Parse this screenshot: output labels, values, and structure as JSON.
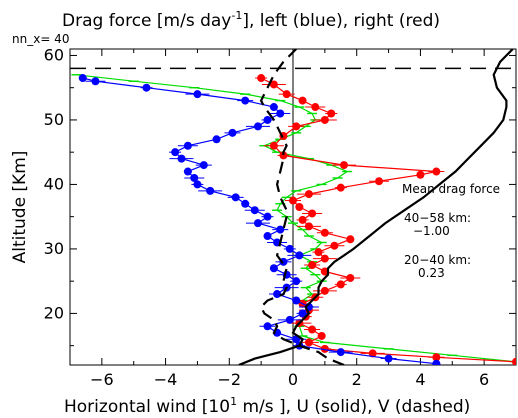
{
  "title_main": "Drag force [m/s day",
  "title_sup": "-1",
  "title_rest": "], left (blue), right (red)",
  "subtitle": "nn_x=  40",
  "chart_data": {
    "type": "line",
    "xlabel_main": "Horizontal wind [10",
    "xlabel_sup": "1",
    "xlabel_rest": " m/s  ], U (solid), V (dashed)",
    "ylabel": "Altitude [Km]",
    "xlim": [
      -7,
      7
    ],
    "ylim": [
      12,
      61
    ],
    "x_ticks": [
      -6,
      -4,
      -2,
      0,
      2,
      4,
      6
    ],
    "x_tick_labels": [
      "−6",
      "−4",
      "−2",
      "0",
      "2",
      "4",
      "6"
    ],
    "y_ticks": [
      20,
      30,
      40,
      50,
      60
    ],
    "y_tick_labels": [
      "20",
      "30",
      "40",
      "50",
      "60"
    ],
    "reference_lines": {
      "vertical_x": 0,
      "horizontal_dashed_y": 58
    },
    "annotations": {
      "header": "Mean drag force",
      "range1": "40−58 km:",
      "value1": "−1.00",
      "range2": "20−40 km:",
      "value2": "0.23"
    },
    "colors": {
      "blue": "#0000ff",
      "red": "#ff0000",
      "green": "#00dd00",
      "black": "#000000"
    },
    "series": [
      {
        "color": "black",
        "style": "solid",
        "points": [
          [
            -1.7,
            12
          ],
          [
            -1.2,
            13
          ],
          [
            -0.4,
            14
          ],
          [
            0.2,
            15
          ],
          [
            0.3,
            16
          ],
          [
            0,
            17
          ],
          [
            0.1,
            18
          ],
          [
            0.3,
            19
          ],
          [
            0.5,
            20
          ],
          [
            0.4,
            21
          ],
          [
            0.6,
            22
          ],
          [
            0.8,
            23
          ],
          [
            0.8,
            24
          ],
          [
            0.9,
            25
          ],
          [
            1.1,
            26
          ],
          [
            1.1,
            27
          ],
          [
            1.3,
            28
          ],
          [
            1.6,
            29
          ],
          [
            1.9,
            30
          ],
          [
            2.4,
            32
          ],
          [
            2.9,
            34
          ],
          [
            3.5,
            36
          ],
          [
            4.1,
            38
          ],
          [
            4.6,
            40
          ],
          [
            5.1,
            42
          ],
          [
            5.5,
            44
          ],
          [
            5.9,
            46
          ],
          [
            6.3,
            48
          ],
          [
            6.6,
            50
          ],
          [
            6.7,
            52
          ],
          [
            6.7,
            53
          ],
          [
            6.4,
            55
          ],
          [
            6.3,
            57
          ],
          [
            6.5,
            59
          ],
          [
            6.9,
            61
          ]
        ]
      },
      {
        "color": "black",
        "style": "dashed",
        "points": [
          [
            1.6,
            12
          ],
          [
            1.1,
            13
          ],
          [
            0.8,
            14
          ],
          [
            0.2,
            15
          ],
          [
            -0.3,
            16
          ],
          [
            -0.6,
            17
          ],
          [
            -0.5,
            18
          ],
          [
            -0.6,
            19
          ],
          [
            -0.9,
            20
          ],
          [
            -1.0,
            21
          ],
          [
            -0.8,
            22
          ],
          [
            -0.3,
            23
          ],
          [
            -0.2,
            24
          ],
          [
            -0.3,
            25
          ],
          [
            -0.2,
            27
          ],
          [
            -0.5,
            29
          ],
          [
            -0.4,
            31
          ],
          [
            -0.3,
            33
          ],
          [
            -0.2,
            35
          ],
          [
            -0.2,
            36
          ],
          [
            -0.4,
            38
          ],
          [
            -0.5,
            40
          ],
          [
            -0.4,
            42
          ],
          [
            -0.3,
            44
          ],
          [
            -0.3,
            45
          ],
          [
            -0.2,
            46
          ],
          [
            -0.4,
            48
          ],
          [
            -0.6,
            50
          ],
          [
            -0.9,
            52
          ],
          [
            -1.0,
            53
          ],
          [
            -0.8,
            55
          ],
          [
            -0.6,
            57
          ],
          [
            -0.3,
            59
          ],
          [
            0.1,
            61
          ]
        ]
      },
      {
        "color": "green",
        "style": "solid",
        "points": [
          [
            7.0,
            12.5
          ],
          [
            5.0,
            13.5
          ],
          [
            3.0,
            14.5
          ],
          [
            1.0,
            15.5
          ],
          [
            0.3,
            16.5
          ],
          [
            0.2,
            18
          ],
          [
            0.4,
            20
          ],
          [
            0.5,
            21
          ],
          [
            0.3,
            22
          ],
          [
            0.6,
            23
          ],
          [
            0.4,
            24
          ],
          [
            0.9,
            25
          ],
          [
            0.7,
            26
          ],
          [
            0.4,
            27
          ],
          [
            0.6,
            28
          ],
          [
            0.2,
            29
          ],
          [
            0.7,
            30
          ],
          [
            0.9,
            31
          ],
          [
            0.5,
            32
          ],
          [
            0.3,
            33
          ],
          [
            0.0,
            34
          ],
          [
            -0.2,
            35
          ],
          [
            -0.5,
            36
          ],
          [
            -0.4,
            37
          ],
          [
            -0.2,
            38
          ],
          [
            0.1,
            39
          ],
          [
            0.9,
            40
          ],
          [
            1.4,
            41
          ],
          [
            1.7,
            42
          ],
          [
            1.2,
            43
          ],
          [
            0.5,
            44
          ],
          [
            -0.5,
            45
          ],
          [
            -0.9,
            46
          ],
          [
            -0.4,
            47
          ],
          [
            0.1,
            48
          ],
          [
            0.4,
            49
          ],
          [
            0.7,
            50
          ],
          [
            0.6,
            51
          ],
          [
            0.2,
            52
          ],
          [
            -0.4,
            53
          ],
          [
            -1.5,
            54
          ],
          [
            -3.1,
            55
          ],
          [
            -5.0,
            56
          ],
          [
            -6.8,
            57
          ]
        ]
      },
      {
        "color": "red",
        "style": "solid",
        "points": [
          [
            7.0,
            12.5
          ],
          [
            4.5,
            13.2
          ],
          [
            2.5,
            13.8
          ],
          [
            1.0,
            14.5
          ],
          [
            0.5,
            15.5
          ],
          [
            0.9,
            16.5
          ],
          [
            0.6,
            17.5
          ],
          [
            0.2,
            18.5
          ],
          [
            0.4,
            19.5
          ],
          [
            0.5,
            20.5
          ],
          [
            0.3,
            21.5
          ],
          [
            0.7,
            22.5
          ],
          [
            1.0,
            23.5
          ],
          [
            1.5,
            24.5
          ],
          [
            1.8,
            25.5
          ],
          [
            1.0,
            26.5
          ],
          [
            0.6,
            27.5
          ],
          [
            1.0,
            28.5
          ],
          [
            0.8,
            29.5
          ],
          [
            1.3,
            30.5
          ],
          [
            1.8,
            31.5
          ],
          [
            1.0,
            32.5
          ],
          [
            0.5,
            33.5
          ],
          [
            0.3,
            34.5
          ],
          [
            0.6,
            35.5
          ],
          [
            0.2,
            36.5
          ],
          [
            0.0,
            37.5
          ],
          [
            0.5,
            38.5
          ],
          [
            1.5,
            39.5
          ],
          [
            2.7,
            40.5
          ],
          [
            4.0,
            41.5
          ],
          [
            4.5,
            42
          ],
          [
            1.6,
            43
          ],
          [
            -0.3,
            44.5
          ],
          [
            -0.6,
            46
          ],
          [
            -0.3,
            47.5
          ],
          [
            0.1,
            49
          ],
          [
            1.0,
            50
          ],
          [
            1.2,
            51
          ],
          [
            0.7,
            52
          ],
          [
            0.3,
            53
          ],
          [
            -0.2,
            54
          ],
          [
            -0.6,
            55.5
          ],
          [
            -1.0,
            56.5
          ]
        ]
      },
      {
        "color": "blue",
        "style": "solid",
        "points": [
          [
            4.5,
            12.2
          ],
          [
            3.0,
            13
          ],
          [
            1.5,
            14
          ],
          [
            0.2,
            15
          ],
          [
            0.1,
            16
          ],
          [
            -0.5,
            17
          ],
          [
            -0.8,
            18
          ],
          [
            -0.1,
            19
          ],
          [
            0.3,
            20
          ],
          [
            0.5,
            21
          ],
          [
            0.1,
            22
          ],
          [
            -0.5,
            23
          ],
          [
            -0.2,
            24
          ],
          [
            0.1,
            25
          ],
          [
            -0.2,
            26
          ],
          [
            -0.6,
            27
          ],
          [
            -0.3,
            28
          ],
          [
            0.2,
            29
          ],
          [
            -0.1,
            30
          ],
          [
            -0.5,
            31
          ],
          [
            -0.8,
            32
          ],
          [
            -0.4,
            33
          ],
          [
            -1.1,
            34
          ],
          [
            -0.8,
            35
          ],
          [
            -1.2,
            36
          ],
          [
            -1.5,
            37
          ],
          [
            -1.8,
            38
          ],
          [
            -2.6,
            39
          ],
          [
            -3.0,
            40
          ],
          [
            -3.1,
            41
          ],
          [
            -3.3,
            42
          ],
          [
            -2.8,
            43
          ],
          [
            -3.5,
            44
          ],
          [
            -3.7,
            45
          ],
          [
            -3.3,
            46
          ],
          [
            -2.4,
            47
          ],
          [
            -1.9,
            48
          ],
          [
            -1.1,
            49
          ],
          [
            -0.8,
            50
          ],
          [
            -0.4,
            51
          ],
          [
            -0.6,
            52
          ],
          [
            -1.5,
            53
          ],
          [
            -3.0,
            54
          ],
          [
            -4.6,
            55
          ],
          [
            -6.2,
            56
          ],
          [
            -6.6,
            56.5
          ]
        ]
      }
    ]
  }
}
